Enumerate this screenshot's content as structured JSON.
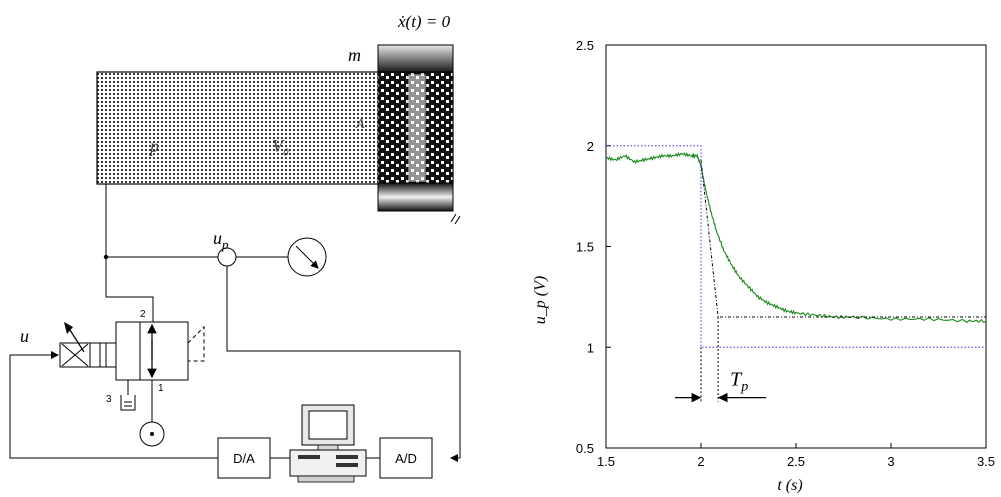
{
  "diagram": {
    "velocity_label": "ẋ(t) = 0",
    "mass_label": "m",
    "pressure_label": "p",
    "volume_label": "V₀",
    "area_label": "A",
    "sensor_label": "u",
    "sensor_sub": "p",
    "input_label": "u",
    "port_2": "2",
    "port_1": "1",
    "port_3": "3",
    "da_label": "D/A",
    "ad_label": "A/D",
    "colors": {
      "stroke": "#000000",
      "fill": "#ffffff"
    }
  },
  "chart_data": {
    "type": "line",
    "xlabel": "t (s)",
    "ylabel": "u_p (V)",
    "xlim": [
      1.5,
      3.5
    ],
    "ylim": [
      0.5,
      2.5
    ],
    "xticks": [
      "1.5",
      "2",
      "2.5",
      "3",
      "3.5"
    ],
    "yticks": [
      "0.5",
      "1",
      "1.5",
      "2",
      "2.5"
    ],
    "grid": false,
    "annotation": {
      "label": "T",
      "sub": "p"
    },
    "series": [
      {
        "style": "green-solid",
        "color": "#1a8a1a",
        "x": [
          1.5,
          1.55,
          1.6,
          1.65,
          1.7,
          1.75,
          1.8,
          1.85,
          1.9,
          1.95,
          1.98,
          2.0,
          2.02,
          2.05,
          2.08,
          2.12,
          2.16,
          2.2,
          2.25,
          2.3,
          2.35,
          2.4,
          2.45,
          2.5,
          2.6,
          2.7,
          2.8,
          3.0,
          3.2,
          3.4,
          3.5
        ],
        "y": [
          1.94,
          1.93,
          1.95,
          1.92,
          1.93,
          1.94,
          1.95,
          1.95,
          1.96,
          1.95,
          1.95,
          1.9,
          1.8,
          1.68,
          1.58,
          1.48,
          1.41,
          1.35,
          1.3,
          1.25,
          1.22,
          1.2,
          1.18,
          1.17,
          1.16,
          1.15,
          1.15,
          1.14,
          1.14,
          1.13,
          1.13
        ]
      },
      {
        "style": "blue-dotted-step",
        "color": "#3333ff",
        "x": [
          1.5,
          2.0,
          2.0,
          3.5
        ],
        "y": [
          2.0,
          2.0,
          1.0,
          1.0
        ]
      },
      {
        "style": "black-dashdot-tangent",
        "color": "#000000",
        "x": [
          2.0,
          2.09,
          2.09,
          3.5
        ],
        "y": [
          1.93,
          1.15,
          1.15,
          1.15
        ]
      }
    ]
  }
}
